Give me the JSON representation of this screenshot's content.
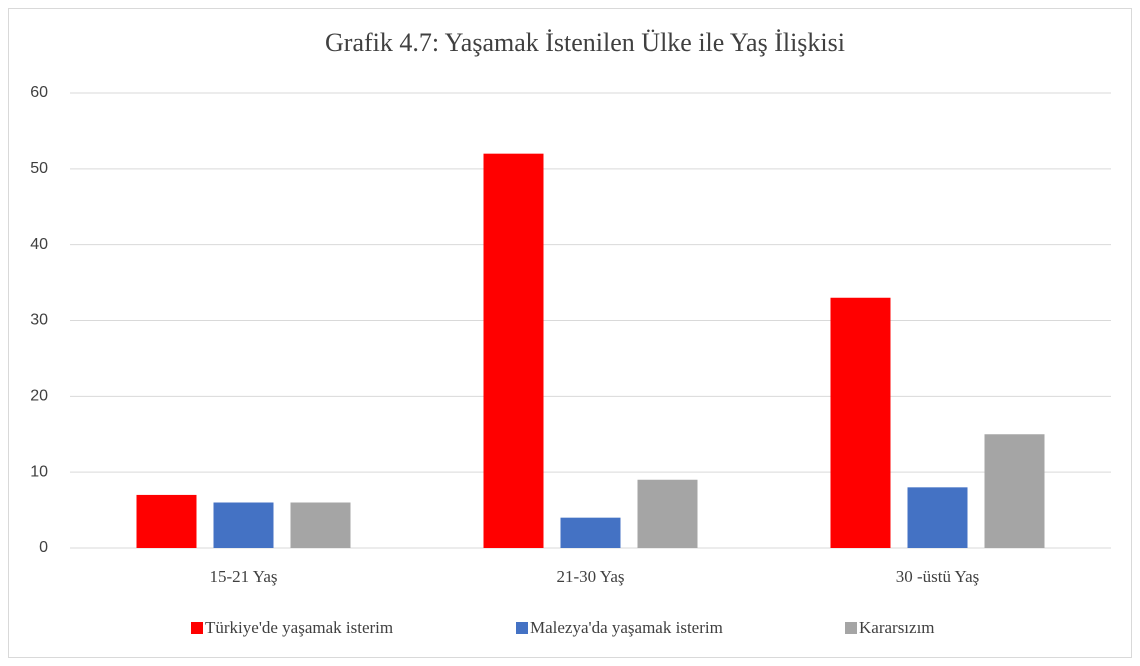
{
  "chart_data": {
    "type": "bar",
    "title": "Grafik 4.7: Yaşamak İstenilen Ülke ile Yaş İlişkisi",
    "categories": [
      "15-21 Yaş",
      "21-30 Yaş",
      "30 -üstü Yaş"
    ],
    "series": [
      {
        "name": "Türkiye'de yaşamak isterim",
        "color": "#ff0000",
        "values": [
          7,
          52,
          33
        ]
      },
      {
        "name": "Malezya'da yaşamak isterim",
        "color": "#4472c4",
        "values": [
          6,
          4,
          8
        ]
      },
      {
        "name": "Kararsızım",
        "color": "#a5a5a5",
        "values": [
          6,
          9,
          15
        ]
      }
    ],
    "ylim": [
      0,
      60
    ],
    "yticks": [
      0,
      10,
      20,
      30,
      40,
      50,
      60
    ],
    "grid": true,
    "legend": "bottom"
  }
}
